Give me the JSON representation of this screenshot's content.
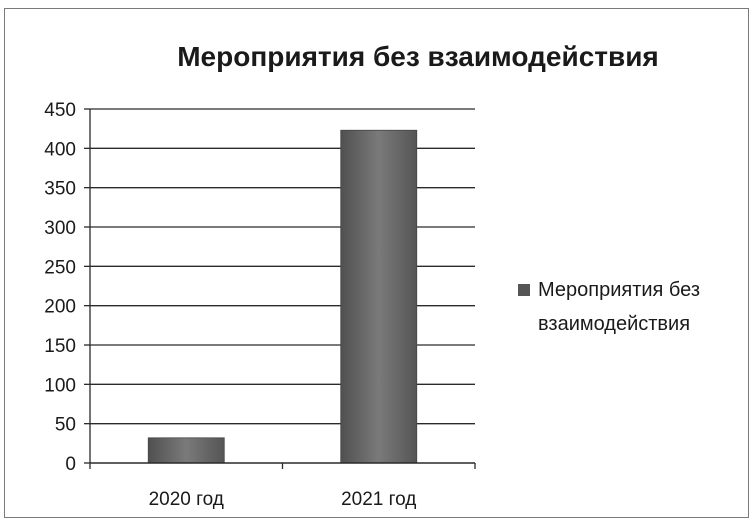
{
  "chart_data": {
    "type": "bar",
    "title": "Мероприятия без взаимодействия",
    "categories": [
      "2020 год",
      "2021 год"
    ],
    "series": [
      {
        "name": "Мероприятия без взаимодействия",
        "values": [
          32,
          423
        ]
      }
    ],
    "yticks": [
      "0",
      "50",
      "100",
      "150",
      "200",
      "250",
      "300",
      "350",
      "400",
      "450"
    ],
    "ylim": [
      0,
      450
    ],
    "xlabel": "",
    "ylabel": "",
    "grid": true,
    "legend": {
      "position": "right",
      "lines": [
        "Мероприятия без",
        "взаимодействия"
      ]
    },
    "colors": {
      "bar": "#6e6e6e",
      "grid": "#2a2a2a",
      "text": "#1a1a1a"
    }
  }
}
